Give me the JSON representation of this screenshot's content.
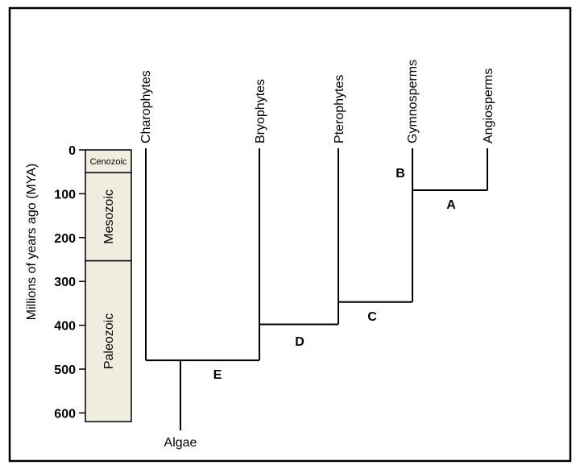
{
  "axis": {
    "title": "Millions of years ago (MYA)",
    "ticks": [
      "0",
      "100",
      "200",
      "300",
      "400",
      "500",
      "600"
    ],
    "min": 0,
    "max": 600
  },
  "eras": [
    {
      "name": "Cenozoic",
      "start": 0,
      "end": 52
    },
    {
      "name": "Mesozoic",
      "start": 52,
      "end": 253
    },
    {
      "name": "Paleozoic",
      "start": 253,
      "end": 620
    }
  ],
  "taxa": {
    "charophytes": "Charophytes",
    "bryophytes": "Bryophytes",
    "pterophytes": "Pterophytes",
    "gymnosperms": "Gymnosperms",
    "angiosperms": "Angiosperms",
    "algae": "Algae"
  },
  "nodes": {
    "a": {
      "label": "A",
      "mya": 92
    },
    "b": {
      "label": "B"
    },
    "c": {
      "label": "C",
      "mya": 347
    },
    "d": {
      "label": "D",
      "mya": 398
    },
    "e": {
      "label": "E",
      "mya": 480
    }
  },
  "colors": {
    "era_fill": "#efece0",
    "line": "#000000"
  }
}
